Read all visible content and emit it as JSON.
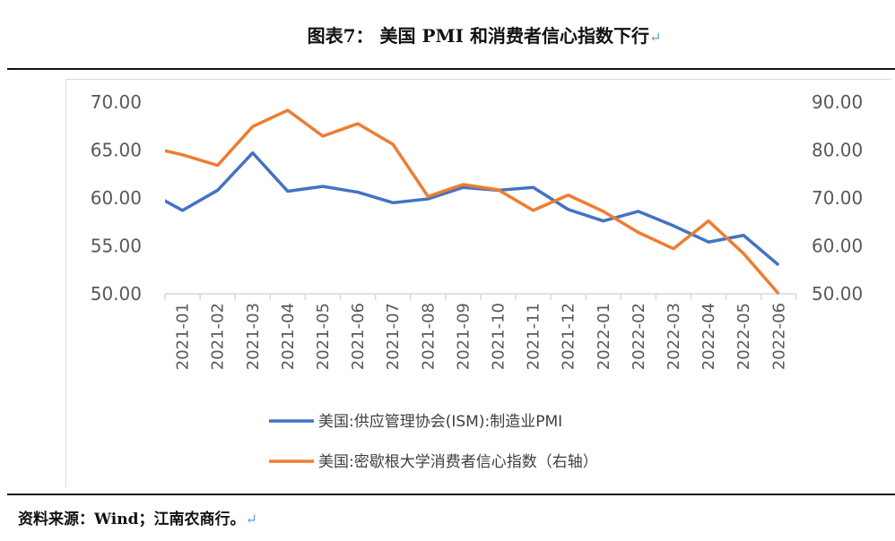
{
  "title": "图表7：  美国 PMI 和消费者信心指数下行",
  "return_mark": "↵",
  "source": "资料来源：Wind；江南农商行。",
  "chart_data": {
    "type": "line",
    "title": "美国 PMI 和消费者信心指数下行",
    "categories": [
      "2021-01",
      "2021-02",
      "2021-03",
      "2021-04",
      "2021-05",
      "2021-06",
      "2021-07",
      "2021-08",
      "2021-09",
      "2021-10",
      "2021-11",
      "2021-12",
      "2022-01",
      "2022-02",
      "2022-03",
      "2022-04",
      "2022-05",
      "2022-06"
    ],
    "left_axis": {
      "ylim": [
        50,
        70
      ],
      "ticks": [
        "50.00",
        "55.00",
        "60.00",
        "65.00",
        "70.00"
      ]
    },
    "right_axis": {
      "ylim": [
        50,
        90
      ],
      "ticks": [
        "50.00",
        "60.00",
        "70.00",
        "80.00",
        "90.00"
      ]
    },
    "series": [
      {
        "name": "美国:供应管理协会(ISM):制造业PMI",
        "axis": "left",
        "color": "#4472c4",
        "prior_value": 60.7,
        "values": [
          58.7,
          60.8,
          64.7,
          60.7,
          61.2,
          60.6,
          59.5,
          59.9,
          61.1,
          60.8,
          61.1,
          58.8,
          57.6,
          58.6,
          57.1,
          55.4,
          56.1,
          53.0
        ]
      },
      {
        "name": "美国:密歇根大学消费者信心指数（右轴）",
        "axis": "right",
        "color": "#ed7d31",
        "prior_value": 80.7,
        "values": [
          79.0,
          76.8,
          84.9,
          88.3,
          82.9,
          85.5,
          81.2,
          70.3,
          72.8,
          71.7,
          67.4,
          70.6,
          67.2,
          62.8,
          59.4,
          65.2,
          58.4,
          50.0
        ]
      }
    ],
    "legend_placement": "bottom",
    "grid": false
  }
}
